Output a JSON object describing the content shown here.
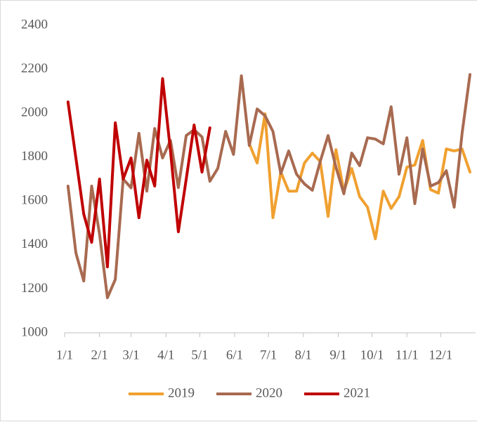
{
  "chart_data": {
    "type": "line",
    "x": [
      3,
      10,
      17,
      24,
      31,
      38,
      45,
      52,
      59,
      66,
      73,
      80,
      87,
      94,
      101,
      108,
      115,
      122,
      129,
      136,
      143,
      150,
      157,
      164,
      171,
      178,
      185,
      192,
      199,
      206,
      213,
      220,
      227,
      234,
      241,
      248,
      255,
      262,
      269,
      276,
      283,
      290,
      297,
      304,
      311,
      318,
      325,
      332,
      339,
      346,
      353,
      360
    ],
    "series": [
      {
        "name": "2019",
        "color": "#f0a030",
        "values": [
          null,
          null,
          null,
          null,
          null,
          null,
          null,
          null,
          null,
          null,
          null,
          null,
          null,
          null,
          null,
          null,
          null,
          null,
          null,
          null,
          null,
          null,
          null,
          1860,
          1773,
          1997,
          1524,
          1732,
          1645,
          1645,
          1773,
          1818,
          1780,
          1530,
          1834,
          1645,
          1748,
          1620,
          1572,
          1428,
          1645,
          1566,
          1620,
          1754,
          1764,
          1876,
          1652,
          1636,
          1837,
          1828,
          1837,
          1732
        ]
      },
      {
        "name": "2020",
        "color": "#a86a50",
        "values": [
          1668,
          1364,
          1236,
          1668,
          1450,
          1160,
          1243,
          1700,
          1660,
          1908,
          1645,
          1930,
          1796,
          1876,
          1661,
          1898,
          1924,
          1892,
          1690,
          1748,
          1917,
          1812,
          2170,
          1853,
          2019,
          1988,
          1917,
          1725,
          1828,
          1722,
          1678,
          1649,
          1780,
          1898,
          1754,
          1633,
          1818,
          1761,
          1888,
          1882,
          1860,
          2029,
          1722,
          1888,
          1588,
          1837,
          1668,
          1684,
          1738,
          1572,
          1908,
          2176
        ]
      },
      {
        "name": "2021",
        "color": "#c00000",
        "values": [
          2051,
          1796,
          1540,
          1412,
          1700,
          1300,
          1956,
          1700,
          1796,
          1524,
          1786,
          1668,
          2157,
          1828,
          1460,
          1700,
          1946,
          1732,
          1933,
          null,
          null,
          null,
          null,
          null,
          null,
          null,
          null,
          null,
          null,
          null,
          null,
          null,
          null,
          null,
          null,
          null,
          null,
          null,
          null,
          null,
          null,
          null,
          null,
          null,
          null,
          null,
          null,
          null,
          null,
          null,
          null,
          null
        ]
      }
    ],
    "xlim": [
      0,
      365
    ],
    "xticks": [
      {
        "value": 0,
        "label": "1/1"
      },
      {
        "value": 31,
        "label": "2/1"
      },
      {
        "value": 59,
        "label": "3/1"
      },
      {
        "value": 90,
        "label": "4/1"
      },
      {
        "value": 120,
        "label": "5/1"
      },
      {
        "value": 151,
        "label": "6/1"
      },
      {
        "value": 181,
        "label": "7/1"
      },
      {
        "value": 212,
        "label": "8/1"
      },
      {
        "value": 243,
        "label": "9/1"
      },
      {
        "value": 273,
        "label": "10/1"
      },
      {
        "value": 304,
        "label": "11/1"
      },
      {
        "value": 334,
        "label": "12/1"
      }
    ],
    "ylim": [
      1000,
      2400
    ],
    "yticks": [
      1000,
      1200,
      1400,
      1600,
      1800,
      2000,
      2200,
      2400
    ],
    "grid": false,
    "legend": "bottom"
  }
}
